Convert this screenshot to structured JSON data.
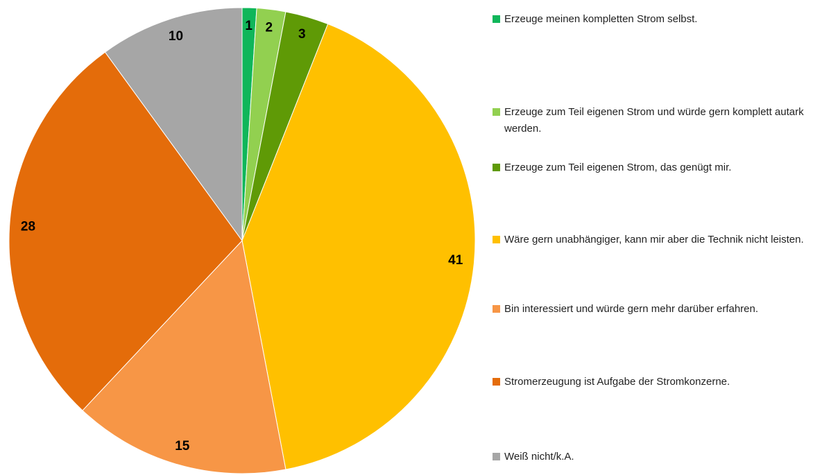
{
  "chart_data": {
    "type": "pie",
    "categories": [
      "Erzeuge meinen kompletten Strom selbst.",
      "Erzeuge zum Teil eigenen Strom und würde gern komplett autark werden.",
      "Erzeuge zum Teil eigenen Strom, das genügt mir.",
      "Wäre gern unabhängiger, kann mir aber die Technik nicht leisten.",
      "Bin interessiert und würde gern mehr darüber erfahren.",
      "Stromerzeugung ist Aufgabe der Stromkonzerne.",
      "Weiß nicht/k.A."
    ],
    "values": [
      1,
      2,
      3,
      41,
      15,
      28,
      10
    ],
    "colors": [
      "#10b65a",
      "#92d050",
      "#5f9a06",
      "#ffc000",
      "#f79646",
      "#e46c0a",
      "#a6a6a6"
    ],
    "legend": "right"
  }
}
